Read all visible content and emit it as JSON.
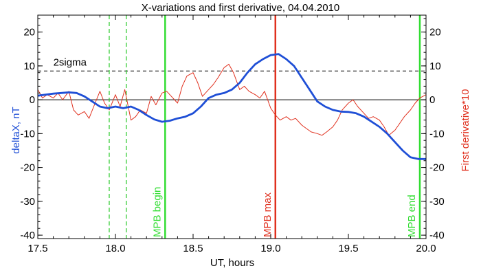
{
  "chart_data": {
    "type": "line",
    "title": "X-variations and first derivative, 04.04.2010",
    "xlabel": "UT, hours",
    "ylabel_left": "deltaX, nT",
    "ylabel_right": "First derivative*10",
    "xlim": [
      17.5,
      20.0
    ],
    "ylim": [
      -41,
      25
    ],
    "xticks": [
      17.5,
      18.0,
      18.5,
      19.0,
      19.5,
      20.0
    ],
    "xtick_labels": [
      "17.5",
      "18.0",
      "18.5",
      "19.0",
      "19.5",
      "20.0"
    ],
    "yticks": [
      20,
      10,
      0,
      -10,
      -20,
      -30,
      -40
    ],
    "ytick_labels": [
      "20",
      "10",
      "0",
      "-10",
      "-20",
      "-30",
      "-40"
    ],
    "grid": false,
    "threshold": {
      "label": "2sigma",
      "value": 8.5
    },
    "zero_line": 0,
    "series": [
      {
        "name": "deltaX",
        "color": "#1f4fd6",
        "x": [
          17.5,
          17.55,
          17.6,
          17.65,
          17.7,
          17.75,
          17.8,
          17.85,
          17.9,
          17.95,
          18.0,
          18.05,
          18.1,
          18.15,
          18.2,
          18.25,
          18.3,
          18.35,
          18.4,
          18.45,
          18.5,
          18.55,
          18.6,
          18.65,
          18.7,
          18.75,
          18.8,
          18.85,
          18.9,
          18.95,
          19.0,
          19.05,
          19.1,
          19.15,
          19.2,
          19.25,
          19.3,
          19.35,
          19.4,
          19.45,
          19.5,
          19.55,
          19.6,
          19.65,
          19.7,
          19.75,
          19.8,
          19.85,
          19.9,
          19.95,
          20.0
        ],
        "values": [
          1.2,
          1.5,
          1.8,
          2.0,
          2.2,
          2.0,
          1.0,
          -0.5,
          -2.0,
          -2.5,
          -2.0,
          -2.5,
          -2.0,
          -3.0,
          -4.5,
          -5.8,
          -6.5,
          -6.2,
          -5.5,
          -5.0,
          -4.0,
          -2.0,
          0.5,
          1.5,
          2.0,
          3.0,
          5.0,
          8.0,
          10.5,
          12.0,
          13.2,
          13.5,
          12.0,
          10.0,
          6.5,
          3.0,
          -0.5,
          -2.0,
          -3.0,
          -3.5,
          -3.6,
          -4.0,
          -5.0,
          -6.5,
          -8.0,
          -10.0,
          -12.5,
          -15.0,
          -17.0,
          -17.5,
          -17.5
        ]
      },
      {
        "name": "first derivative",
        "color": "#e0301e",
        "x": [
          17.5,
          17.53,
          17.56,
          17.6,
          17.63,
          17.66,
          17.7,
          17.73,
          17.76,
          17.8,
          17.83,
          17.86,
          17.9,
          17.93,
          17.96,
          18.0,
          18.03,
          18.06,
          18.1,
          18.13,
          18.16,
          18.2,
          18.23,
          18.26,
          18.3,
          18.33,
          18.36,
          18.4,
          18.43,
          18.46,
          18.5,
          18.53,
          18.56,
          18.6,
          18.63,
          18.66,
          18.7,
          18.73,
          18.76,
          18.8,
          18.83,
          18.86,
          18.9,
          18.93,
          18.96,
          19.0,
          19.03,
          19.06,
          19.1,
          19.13,
          19.16,
          19.2,
          19.23,
          19.26,
          19.3,
          19.33,
          19.36,
          19.4,
          19.43,
          19.46,
          19.5,
          19.53,
          19.56,
          19.6,
          19.63,
          19.66,
          19.7,
          19.73,
          19.76,
          19.8,
          19.83,
          19.86,
          19.9,
          19.93,
          19.96,
          20.0
        ],
        "values": [
          3.0,
          0.5,
          1.5,
          0.5,
          2.0,
          0.0,
          2.5,
          -3.0,
          -4.5,
          -3.5,
          -5.5,
          -2.0,
          2.5,
          -1.0,
          -3.0,
          1.5,
          -2.0,
          3.0,
          -6.0,
          -5.0,
          -3.0,
          -4.0,
          1.0,
          -1.5,
          2.0,
          2.5,
          1.0,
          -1.0,
          4.0,
          7.0,
          8.0,
          5.0,
          1.0,
          3.0,
          4.5,
          6.5,
          9.5,
          10.5,
          8.0,
          3.0,
          4.0,
          2.5,
          1.5,
          0.5,
          2.5,
          -2.5,
          -4.5,
          -6.0,
          -5.0,
          -6.0,
          -5.5,
          -7.5,
          -8.5,
          -9.5,
          -10.0,
          -10.5,
          -9.5,
          -8.0,
          -6.0,
          -3.0,
          -1.0,
          0.0,
          -2.0,
          -4.0,
          -5.5,
          -5.0,
          -6.0,
          -8.0,
          -10.5,
          -9.0,
          -7.0,
          -5.0,
          -3.0,
          -1.0,
          0.5,
          1.5
        ]
      }
    ],
    "vlines": [
      {
        "x": 17.96,
        "color": "#33cc33",
        "style": "dashed",
        "label": ""
      },
      {
        "x": 18.07,
        "color": "#33cc33",
        "style": "dashed",
        "label": ""
      },
      {
        "x": 18.32,
        "color": "#33dd33",
        "style": "solid",
        "label": "MPB begin"
      },
      {
        "x": 19.03,
        "color": "#e0301e",
        "style": "solid",
        "label": "MPB max"
      },
      {
        "x": 19.96,
        "color": "#33dd33",
        "style": "solid",
        "label": "MPB end"
      }
    ]
  },
  "colors": {
    "left_axis_label": "#1f4fd6",
    "right_axis_label": "#e0301e",
    "axes": "#000000"
  }
}
